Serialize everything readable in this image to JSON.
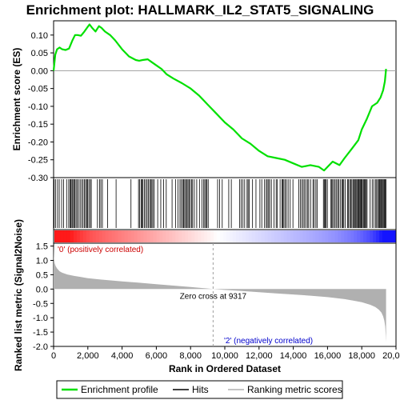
{
  "title": "Enrichment plot: HALLMARK_IL2_STAT5_SIGNALING",
  "legend": {
    "items": [
      {
        "label": "Enrichment profile",
        "color": "#00e000"
      },
      {
        "label": "Hits",
        "color": "#000000"
      },
      {
        "label": "Ranking metric scores",
        "color": "#b0b0b0"
      }
    ]
  },
  "annotations": {
    "positive_label": "'0' (positively correlated)",
    "negative_label": "'2' (negatively correlated)",
    "zero_cross": "Zero cross at 9317"
  },
  "colors": {
    "profile": "#00e000",
    "hits": "#000000",
    "metric_fill": "#b0b0b0",
    "positive_label": "#cc0000",
    "negative_label": "#0000cc",
    "heat_positive": "#ff0000",
    "heat_negative": "#0000ff"
  },
  "chart_data": [
    {
      "type": "line",
      "name": "enrichment-profile",
      "title": "Enrichment plot: HALLMARK_IL2_STAT5_SIGNALING",
      "ylabel": "Enrichment score (ES)",
      "ylim": [
        -0.3,
        0.14
      ],
      "xlim": [
        0,
        20000
      ],
      "yticks": [
        "0.10",
        "0.05",
        "0.00",
        "-0.05",
        "-0.10",
        "-0.15",
        "-0.20",
        "-0.25",
        "-0.30"
      ],
      "ytick_values": [
        0.1,
        0.05,
        0.0,
        -0.05,
        -0.1,
        -0.15,
        -0.2,
        -0.25,
        -0.3
      ],
      "grid": false,
      "x": [
        0,
        100,
        200,
        350,
        500,
        700,
        900,
        1100,
        1250,
        1400,
        1600,
        1800,
        1950,
        2100,
        2250,
        2450,
        2650,
        2800,
        3000,
        3300,
        3600,
        4000,
        4400,
        4800,
        5000,
        5200,
        5500,
        5700,
        6000,
        6300,
        6600,
        7000,
        7500,
        8000,
        8500,
        9000,
        9500,
        10000,
        10500,
        11000,
        11500,
        12000,
        12500,
        13000,
        13500,
        14000,
        14500,
        15000,
        15500,
        15800,
        16000,
        16300,
        16700,
        17000,
        17400,
        17800,
        18000,
        18300,
        18600,
        18900,
        19100,
        19250,
        19350,
        19420
      ],
      "y": [
        0.0,
        0.045,
        0.06,
        0.065,
        0.06,
        0.058,
        0.062,
        0.085,
        0.1,
        0.1,
        0.098,
        0.11,
        0.12,
        0.13,
        0.12,
        0.11,
        0.125,
        0.12,
        0.11,
        0.1,
        0.085,
        0.06,
        0.04,
        0.03,
        0.028,
        0.03,
        0.032,
        0.025,
        0.015,
        0.005,
        -0.01,
        -0.022,
        -0.035,
        -0.05,
        -0.07,
        -0.095,
        -0.12,
        -0.145,
        -0.165,
        -0.19,
        -0.205,
        -0.225,
        -0.24,
        -0.245,
        -0.25,
        -0.26,
        -0.27,
        -0.265,
        -0.27,
        -0.28,
        -0.27,
        -0.255,
        -0.265,
        -0.245,
        -0.22,
        -0.195,
        -0.165,
        -0.135,
        -0.1,
        -0.09,
        -0.075,
        -0.055,
        -0.03,
        0.005
      ]
    },
    {
      "type": "scatter",
      "name": "hits",
      "xlim": [
        0,
        20000
      ],
      "x": [
        30,
        120,
        230,
        330,
        470,
        580,
        760,
        880,
        960,
        1010,
        1070,
        1120,
        1180,
        1240,
        1310,
        1380,
        1460,
        1550,
        1640,
        1720,
        1800,
        1870,
        1930,
        1990,
        2060,
        2140,
        2200,
        2560,
        2680,
        2760,
        2850,
        3150,
        3650,
        4520,
        4960,
        5030,
        5110,
        5160,
        5220,
        5300,
        5380,
        5460,
        5530,
        5610,
        5680,
        5740,
        5800,
        5880,
        6080,
        6260,
        6430,
        6580,
        6920,
        7120,
        7260,
        7380,
        7460,
        7540,
        7600,
        7660,
        7720,
        7790,
        7850,
        7910,
        7980,
        8060,
        8120,
        8220,
        8360,
        8520,
        8660,
        8770,
        8830,
        8900,
        8960,
        9030,
        9580,
        9700,
        9850,
        10230,
        10380,
        10870,
        10960,
        11060,
        11160,
        11300,
        11360,
        11430,
        11620,
        11820,
        12050,
        12160,
        12320,
        12420,
        12480,
        12560,
        12620,
        12720,
        12870,
        13000,
        13070,
        13230,
        13340,
        13390,
        13450,
        13520,
        13600,
        13700,
        13820,
        13980,
        14320,
        14420,
        14500,
        14580,
        14660,
        14740,
        14830,
        14900,
        15010,
        15150,
        15220,
        15320,
        15390,
        15760,
        15810,
        15870,
        15920,
        15990,
        16200,
        16250,
        16300,
        16380,
        16450,
        16530,
        16600,
        16670,
        16760,
        16850,
        16900,
        16950,
        17030,
        17170,
        17220,
        17300,
        17350,
        17420,
        17490,
        17530,
        17590,
        17650,
        17700,
        17760,
        17800,
        17850,
        17900,
        17950,
        17990,
        18040,
        18100,
        18150,
        18200,
        18260,
        18310,
        18490,
        18610,
        18700,
        18800,
        18870,
        18930,
        18990,
        19040,
        19080,
        19140,
        19190,
        19240,
        19290,
        19330,
        19370,
        19410
      ]
    },
    {
      "type": "area",
      "name": "ranked-list-metric",
      "ylabel": "Ranked list metric (Signal2Noise)",
      "xlabel": "Rank in Ordered Dataset",
      "ylim": [
        -2.0,
        1.6
      ],
      "xlim": [
        0,
        20000
      ],
      "yticks": [
        "1.5",
        "1.0",
        "0.5",
        "0.0",
        "-0.5",
        "-1.0",
        "-1.5",
        "-2.0"
      ],
      "ytick_values": [
        1.5,
        1.0,
        0.5,
        0.0,
        -0.5,
        -1.0,
        -1.5,
        -2.0
      ],
      "xticks": [
        "0",
        "2,000",
        "4,000",
        "6,000",
        "8,000",
        "10,000",
        "12,000",
        "14,000",
        "16,000",
        "18,000",
        "20,000"
      ],
      "xtick_values": [
        0,
        2000,
        4000,
        6000,
        8000,
        10000,
        12000,
        14000,
        16000,
        18000,
        20000
      ],
      "zero_cross": 9317,
      "x": [
        0,
        20,
        60,
        120,
        200,
        350,
        500,
        800,
        1200,
        1600,
        2000,
        3000,
        4000,
        5000,
        6000,
        7000,
        8000,
        9000,
        9317,
        10000,
        11000,
        12000,
        13000,
        14000,
        15000,
        16000,
        17000,
        17500,
        18000,
        18500,
        18800,
        19000,
        19150,
        19250,
        19320,
        19370,
        19400,
        19420
      ],
      "y": [
        1.55,
        1.1,
        0.9,
        0.8,
        0.72,
        0.62,
        0.57,
        0.51,
        0.46,
        0.42,
        0.38,
        0.32,
        0.27,
        0.22,
        0.17,
        0.12,
        0.07,
        0.02,
        0.0,
        -0.03,
        -0.07,
        -0.11,
        -0.15,
        -0.19,
        -0.23,
        -0.28,
        -0.35,
        -0.4,
        -0.46,
        -0.55,
        -0.63,
        -0.72,
        -0.82,
        -0.95,
        -1.1,
        -1.3,
        -1.6,
        -1.85
      ]
    }
  ]
}
